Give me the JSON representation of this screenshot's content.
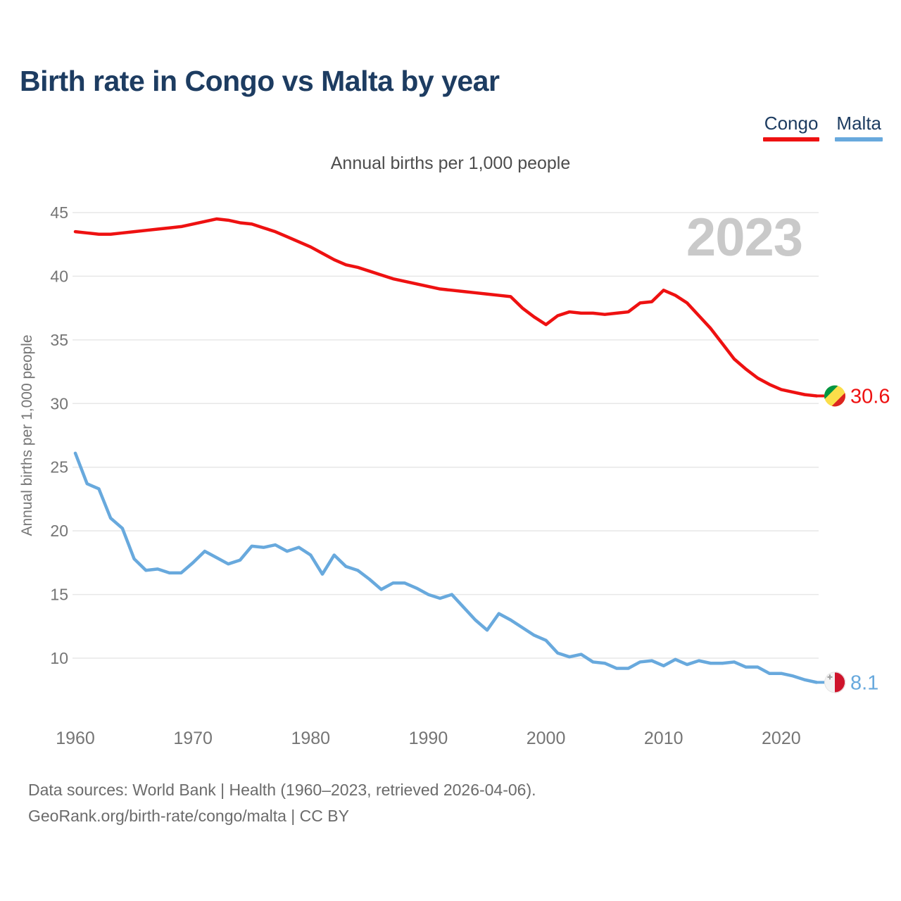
{
  "header": {
    "title": "Birth rate in Congo vs Malta by year"
  },
  "legend": [
    {
      "label": "Congo",
      "color": "#ee1111"
    },
    {
      "label": "Malta",
      "color": "#68a9dd"
    }
  ],
  "chart_data": {
    "type": "line",
    "title": "Birth rate in Congo vs Malta by year",
    "subtitle": "Annual births per 1,000 people",
    "ylabel": "Annual births per 1,000 people",
    "xlabel": "",
    "watermark": "2023",
    "grid": true,
    "legend_position": "top-right",
    "xlim": [
      1960,
      2023
    ],
    "ylim": [
      7.5,
      46
    ],
    "xticks": [
      1960,
      1970,
      1980,
      1990,
      2000,
      2010,
      2020
    ],
    "yticks": [
      10,
      15,
      20,
      25,
      30,
      35,
      40,
      45
    ],
    "x": [
      1960,
      1961,
      1962,
      1963,
      1964,
      1965,
      1966,
      1967,
      1968,
      1969,
      1970,
      1971,
      1972,
      1973,
      1974,
      1975,
      1976,
      1977,
      1978,
      1979,
      1980,
      1981,
      1982,
      1983,
      1984,
      1985,
      1986,
      1987,
      1988,
      1989,
      1990,
      1991,
      1992,
      1993,
      1994,
      1995,
      1996,
      1997,
      1998,
      1999,
      2000,
      2001,
      2002,
      2003,
      2004,
      2005,
      2006,
      2007,
      2008,
      2009,
      2010,
      2011,
      2012,
      2013,
      2014,
      2015,
      2016,
      2017,
      2018,
      2019,
      2020,
      2021,
      2022,
      2023
    ],
    "series": [
      {
        "name": "Congo",
        "color": "#ee1111",
        "end_label": "30.6",
        "values": [
          43.5,
          43.4,
          43.3,
          43.3,
          43.4,
          43.5,
          43.6,
          43.7,
          43.8,
          43.9,
          44.1,
          44.3,
          44.5,
          44.4,
          44.2,
          44.1,
          43.8,
          43.5,
          43.1,
          42.7,
          42.3,
          41.8,
          41.3,
          40.9,
          40.7,
          40.4,
          40.1,
          39.8,
          39.6,
          39.4,
          39.2,
          39.0,
          38.9,
          38.8,
          38.7,
          38.6,
          38.5,
          38.4,
          37.5,
          36.8,
          36.2,
          36.9,
          37.2,
          37.1,
          37.1,
          37.0,
          37.1,
          37.2,
          37.9,
          38.0,
          38.9,
          38.5,
          37.9,
          36.9,
          35.9,
          34.7,
          33.5,
          32.7,
          32.0,
          31.5,
          31.1,
          30.9,
          30.7,
          30.6
        ]
      },
      {
        "name": "Malta",
        "color": "#68a9dd",
        "end_label": "8.1",
        "values": [
          26.1,
          23.7,
          23.3,
          21.0,
          20.2,
          17.8,
          16.9,
          17.0,
          16.7,
          16.7,
          17.5,
          18.4,
          17.9,
          17.4,
          17.7,
          18.8,
          18.7,
          18.9,
          18.4,
          18.7,
          18.1,
          16.6,
          18.1,
          17.2,
          16.9,
          16.2,
          15.4,
          15.9,
          15.9,
          15.5,
          15.0,
          14.7,
          15.0,
          14.0,
          13.0,
          12.2,
          13.5,
          13.0,
          12.4,
          11.8,
          11.4,
          10.4,
          10.1,
          10.3,
          9.7,
          9.6,
          9.2,
          9.2,
          9.7,
          9.8,
          9.4,
          9.9,
          9.5,
          9.8,
          9.6,
          9.6,
          9.7,
          9.3,
          9.3,
          8.8,
          8.8,
          8.6,
          8.3,
          8.1
        ]
      }
    ]
  },
  "icons": {
    "congo_flag": {
      "green": "#009543",
      "yellow": "#fbde4a",
      "red": "#dc241f"
    },
    "malta_flag": {
      "white": "#f4f4f4",
      "red": "#cf142b",
      "cross": "#9e9e9e"
    }
  },
  "style_colors": {
    "title": "#1d3c61",
    "grid": "#e7e7e7",
    "axis_text": "#757575",
    "watermark": "#c9c9c9",
    "footer_text": "#6b6b6b"
  },
  "footer": {
    "line1": "Data sources: World Bank | Health (1960–2023, retrieved 2026-04-06).",
    "line2": "GeoRank.org/birth-rate/congo/malta | CC BY"
  }
}
